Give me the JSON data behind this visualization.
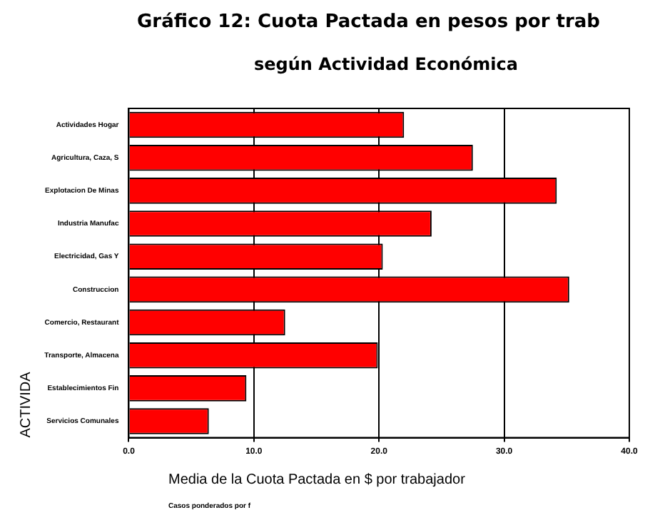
{
  "chart_data": {
    "type": "bar",
    "orientation": "horizontal",
    "title": "Gráfico 12: Cuota Pactada en pesos por trab",
    "subtitle": "según Actividad Económica",
    "xlabel": "Media de la Cuota Pactada en $ por trabajador",
    "ylabel": "ACTIVIDA",
    "categories": [
      "Actividades Hogar",
      "Agricultura, Caza, S",
      "Explotacion De Minas",
      "Industria Manufac",
      "Electricidad, Gas Y",
      "Construccion",
      "Comercio, Restaurant",
      "Transporte, Almacena",
      "Establecimientos Fin",
      "Servicios Comunales"
    ],
    "values": [
      22.0,
      27.5,
      34.2,
      24.2,
      20.3,
      35.2,
      12.5,
      19.9,
      9.4,
      6.4
    ],
    "color": "#ff0000",
    "xlim": [
      0,
      40
    ],
    "xticks": [
      {
        "value": 0,
        "label": "0.0"
      },
      {
        "value": 10,
        "label": "10.0"
      },
      {
        "value": 20,
        "label": "20.0"
      },
      {
        "value": 30,
        "label": "30.0"
      },
      {
        "value": 40,
        "label": "40.0"
      }
    ],
    "grid": "x",
    "legend": false,
    "annotations": [
      "Casos ponderados por f"
    ]
  }
}
